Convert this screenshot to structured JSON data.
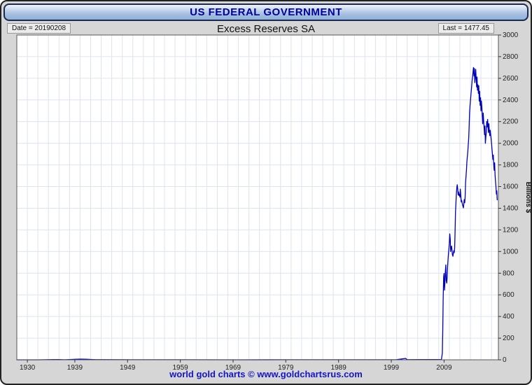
{
  "header": {
    "title": "US FEDERAL GOVERNMENT"
  },
  "subheader": {
    "date_label": "Date = 20190208",
    "chart_title": "Excess Reserves SA",
    "last_label": "Last = 1477.45"
  },
  "footer": {
    "credit": "world gold charts © www.goldchartsrus.com"
  },
  "colors": {
    "accent_blue": "#00009c",
    "line": "#0000bb",
    "grid": "#dce4ef",
    "plot_border": "#555555",
    "frame_bg": "#d6d6d6",
    "footer_text": "#1515c8",
    "header_border": "#1b2a55",
    "tick": "#333333",
    "axis_text": "#222222"
  },
  "chart_data": {
    "type": "line",
    "title": "Excess Reserves SA",
    "xlabel": "",
    "ylabel": "Billions $",
    "date": "20190208",
    "last_value": 1477.45,
    "xlim": [
      1928,
      2019.3
    ],
    "ylim": [
      0,
      3000
    ],
    "x_ticks": [
      1930,
      1939,
      1949,
      1959,
      1969,
      1979,
      1989,
      1999,
      2009
    ],
    "y_ticks": [
      0,
      200,
      400,
      600,
      800,
      1000,
      1200,
      1400,
      1600,
      1800,
      2000,
      2200,
      2400,
      2600,
      2800,
      3000
    ],
    "x_grid_step": 2,
    "y_grid_step": 200,
    "grid": true,
    "legend": "none",
    "series": [
      {
        "name": "Excess Reserves SA",
        "points": [
          [
            1928,
            0
          ],
          [
            1930,
            0.1
          ],
          [
            1932,
            0.3
          ],
          [
            1933,
            0.5
          ],
          [
            1934,
            1.6
          ],
          [
            1935,
            2.4
          ],
          [
            1936,
            2.0
          ],
          [
            1937,
            0.9
          ],
          [
            1938,
            2.5
          ],
          [
            1939,
            4.4
          ],
          [
            1940,
            6.3
          ],
          [
            1941,
            5.3
          ],
          [
            1942,
            3.4
          ],
          [
            1943,
            1.0
          ],
          [
            1945,
            1.1
          ],
          [
            1950,
            0.6
          ],
          [
            1960,
            0.4
          ],
          [
            1970,
            0.2
          ],
          [
            1980,
            0.4
          ],
          [
            1990,
            0.9
          ],
          [
            2000,
            1.2
          ],
          [
            2001.7,
            12.9
          ],
          [
            2002,
            1.5
          ],
          [
            2005,
            1.8
          ],
          [
            2008.5,
            2
          ],
          [
            2008.67,
            60
          ],
          [
            2008.75,
            267
          ],
          [
            2008.83,
            559
          ],
          [
            2008.92,
            767
          ],
          [
            2009,
            798
          ],
          [
            2009.08,
            643
          ],
          [
            2009.17,
            725
          ],
          [
            2009.25,
            824
          ],
          [
            2009.33,
            877
          ],
          [
            2009.42,
            733
          ],
          [
            2009.5,
            708
          ],
          [
            2009.58,
            760
          ],
          [
            2009.67,
            855
          ],
          [
            2009.75,
            920
          ],
          [
            2009.83,
            975
          ],
          [
            2009.92,
            1025
          ],
          [
            2010,
            1075
          ],
          [
            2010.08,
            1163
          ],
          [
            2010.17,
            1117
          ],
          [
            2010.25,
            1000
          ],
          [
            2010.33,
            1035
          ],
          [
            2010.42,
            1050
          ],
          [
            2010.5,
            1013
          ],
          [
            2010.58,
            971
          ],
          [
            2010.67,
            956
          ],
          [
            2010.75,
            980
          ],
          [
            2010.83,
            1007
          ],
          [
            2010.92,
            990
          ],
          [
            2011,
            1031
          ],
          [
            2011.08,
            1178
          ],
          [
            2011.17,
            1363
          ],
          [
            2011.25,
            1446
          ],
          [
            2011.33,
            1522
          ],
          [
            2011.42,
            1589
          ],
          [
            2011.5,
            1617
          ],
          [
            2011.58,
            1583
          ],
          [
            2011.67,
            1524
          ],
          [
            2011.75,
            1550
          ],
          [
            2011.83,
            1517
          ],
          [
            2011.92,
            1530
          ],
          [
            2012,
            1502
          ],
          [
            2012.08,
            1576
          ],
          [
            2012.17,
            1516
          ],
          [
            2012.25,
            1459
          ],
          [
            2012.33,
            1472
          ],
          [
            2012.42,
            1449
          ],
          [
            2012.5,
            1430
          ],
          [
            2012.58,
            1417
          ],
          [
            2012.67,
            1403
          ],
          [
            2012.75,
            1443
          ],
          [
            2012.83,
            1480
          ],
          [
            2012.92,
            1450
          ],
          [
            2013,
            1506
          ],
          [
            2013.08,
            1636
          ],
          [
            2013.17,
            1700
          ],
          [
            2013.25,
            1754
          ],
          [
            2013.33,
            1830
          ],
          [
            2013.42,
            1880
          ],
          [
            2013.5,
            1922
          ],
          [
            2013.58,
            1983
          ],
          [
            2013.67,
            2048
          ],
          [
            2013.75,
            2151
          ],
          [
            2013.83,
            2280
          ],
          [
            2013.92,
            2350
          ],
          [
            2014,
            2395
          ],
          [
            2014.08,
            2444
          ],
          [
            2014.17,
            2486
          ],
          [
            2014.25,
            2534
          ],
          [
            2014.33,
            2583
          ],
          [
            2014.42,
            2620
          ],
          [
            2014.5,
            2660
          ],
          [
            2014.58,
            2700
          ],
          [
            2014.67,
            2622
          ],
          [
            2014.75,
            2690
          ],
          [
            2014.83,
            2560
          ],
          [
            2014.92,
            2610
          ],
          [
            2015,
            2683
          ],
          [
            2015.08,
            2600
          ],
          [
            2015.17,
            2520
          ],
          [
            2015.25,
            2612
          ],
          [
            2015.33,
            2490
          ],
          [
            2015.42,
            2540
          ],
          [
            2015.5,
            2460
          ],
          [
            2015.58,
            2530
          ],
          [
            2015.67,
            2390
          ],
          [
            2015.75,
            2480
          ],
          [
            2015.83,
            2350
          ],
          [
            2015.92,
            2420
          ],
          [
            2016,
            2300
          ],
          [
            2016.08,
            2390
          ],
          [
            2016.17,
            2330
          ],
          [
            2016.25,
            2250
          ],
          [
            2016.33,
            2180
          ],
          [
            2016.42,
            2280
          ],
          [
            2016.5,
            2210
          ],
          [
            2016.58,
            2150
          ],
          [
            2016.67,
            2080
          ],
          [
            2016.75,
            2160
          ],
          [
            2016.83,
            2000
          ],
          [
            2016.92,
            2060
          ],
          [
            2017,
            2100
          ],
          [
            2017.08,
            2200
          ],
          [
            2017.17,
            2150
          ],
          [
            2017.25,
            2220
          ],
          [
            2017.33,
            2160
          ],
          [
            2017.42,
            2100
          ],
          [
            2017.5,
            2180
          ],
          [
            2017.58,
            2120
          ],
          [
            2017.67,
            2070
          ],
          [
            2017.75,
            2121
          ],
          [
            2017.83,
            2080
          ],
          [
            2017.92,
            2040
          ],
          [
            2018,
            2000
          ],
          [
            2018.08,
            1950
          ],
          [
            2018.17,
            1900
          ],
          [
            2018.25,
            1850
          ],
          [
            2018.33,
            1890
          ],
          [
            2018.42,
            1800
          ],
          [
            2018.5,
            1750
          ],
          [
            2018.58,
            1820
          ],
          [
            2018.67,
            1700
          ],
          [
            2018.75,
            1650
          ],
          [
            2018.83,
            1600
          ],
          [
            2018.92,
            1530
          ],
          [
            2019,
            1560
          ],
          [
            2019.08,
            1477.45
          ]
        ]
      }
    ]
  }
}
